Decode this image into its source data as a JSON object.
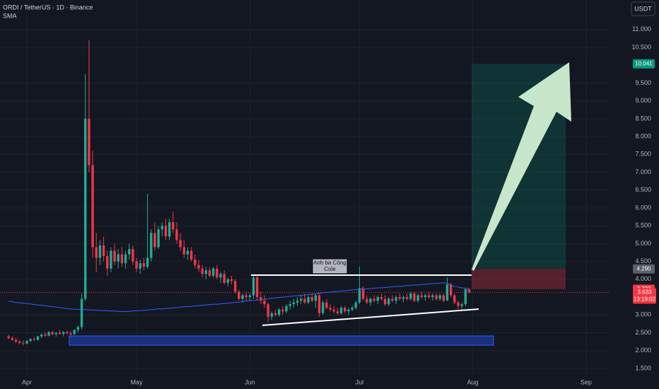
{
  "header": {
    "symbol": "ORDI / TetherUS · 1D · Binance",
    "currency": "USDT"
  },
  "chart_data": {
    "type": "candlestick",
    "up_color": "#22ab94",
    "down_color": "#f23645",
    "candles": [
      [
        2.4,
        2.45,
        2.32,
        2.35
      ],
      [
        2.35,
        2.4,
        2.28,
        2.3
      ],
      [
        2.3,
        2.36,
        2.22,
        2.25
      ],
      [
        2.25,
        2.3,
        2.18,
        2.22
      ],
      [
        2.22,
        2.28,
        2.15,
        2.2
      ],
      [
        2.2,
        2.3,
        2.17,
        2.27
      ],
      [
        2.27,
        2.35,
        2.24,
        2.32
      ],
      [
        2.32,
        2.38,
        2.26,
        2.3
      ],
      [
        2.3,
        2.42,
        2.28,
        2.4
      ],
      [
        2.4,
        2.48,
        2.35,
        2.45
      ],
      [
        2.45,
        2.52,
        2.38,
        2.42
      ],
      [
        2.42,
        2.55,
        2.4,
        2.52
      ],
      [
        2.52,
        2.56,
        2.42,
        2.46
      ],
      [
        2.46,
        2.52,
        2.4,
        2.5
      ],
      [
        2.5,
        2.58,
        2.44,
        2.47
      ],
      [
        2.47,
        2.55,
        2.4,
        2.52
      ],
      [
        2.52,
        2.56,
        2.45,
        2.49
      ],
      [
        2.49,
        2.55,
        2.42,
        2.46
      ],
      [
        2.46,
        2.6,
        2.44,
        2.58
      ],
      [
        2.58,
        2.7,
        2.5,
        2.66
      ],
      [
        2.66,
        3.6,
        2.6,
        3.45
      ],
      [
        3.45,
        9.75,
        3.4,
        8.5
      ],
      [
        8.5,
        10.7,
        7.0,
        7.2
      ],
      [
        7.2,
        7.6,
        4.6,
        4.9
      ],
      [
        4.9,
        5.3,
        4.2,
        4.6
      ],
      [
        4.6,
        5.1,
        4.4,
        4.95
      ],
      [
        4.95,
        5.2,
        4.5,
        4.65
      ],
      [
        4.65,
        4.8,
        4.1,
        4.3
      ],
      [
        4.3,
        4.9,
        4.2,
        4.8
      ],
      [
        4.8,
        5.0,
        4.4,
        4.5
      ],
      [
        4.5,
        4.85,
        4.3,
        4.7
      ],
      [
        4.7,
        4.9,
        4.35,
        4.45
      ],
      [
        4.45,
        4.8,
        4.3,
        4.7
      ],
      [
        4.7,
        5.0,
        4.55,
        4.85
      ],
      [
        4.85,
        4.95,
        4.4,
        4.5
      ],
      [
        4.5,
        4.6,
        4.2,
        4.3
      ],
      [
        4.3,
        4.55,
        4.15,
        4.45
      ],
      [
        4.45,
        4.6,
        4.25,
        4.35
      ],
      [
        4.35,
        6.4,
        4.3,
        4.6
      ],
      [
        4.6,
        5.4,
        4.5,
        5.3
      ],
      [
        5.3,
        5.6,
        4.8,
        4.9
      ],
      [
        4.9,
        5.5,
        4.85,
        5.4
      ],
      [
        5.4,
        5.6,
        5.2,
        5.5
      ],
      [
        5.5,
        5.7,
        5.1,
        5.2
      ],
      [
        5.2,
        5.7,
        5.1,
        5.6
      ],
      [
        5.6,
        5.9,
        5.3,
        5.4
      ],
      [
        5.4,
        5.6,
        5.0,
        5.1
      ],
      [
        5.1,
        5.3,
        4.8,
        4.9
      ],
      [
        4.9,
        5.1,
        4.6,
        4.7
      ],
      [
        4.7,
        4.9,
        4.55,
        4.8
      ],
      [
        4.8,
        4.9,
        4.5,
        4.55
      ],
      [
        4.55,
        4.7,
        4.3,
        4.4
      ],
      [
        4.4,
        4.55,
        4.2,
        4.3
      ],
      [
        4.3,
        4.4,
        4.05,
        4.15
      ],
      [
        4.15,
        4.35,
        4.0,
        4.25
      ],
      [
        4.25,
        4.35,
        4.05,
        4.1
      ],
      [
        4.1,
        4.35,
        4.05,
        4.3
      ],
      [
        4.3,
        4.4,
        4.0,
        4.05
      ],
      [
        4.05,
        4.2,
        3.9,
        4.15
      ],
      [
        4.15,
        4.25,
        3.85,
        3.9
      ],
      [
        3.9,
        4.05,
        3.8,
        4.0
      ],
      [
        4.0,
        4.1,
        3.85,
        3.95
      ],
      [
        3.95,
        4.0,
        3.6,
        3.65
      ],
      [
        3.65,
        3.7,
        3.4,
        3.45
      ],
      [
        3.45,
        3.6,
        3.35,
        3.55
      ],
      [
        3.55,
        3.65,
        3.4,
        3.5
      ],
      [
        3.5,
        3.6,
        3.4,
        3.55
      ],
      [
        3.55,
        4.1,
        3.45,
        4.05
      ],
      [
        4.05,
        4.12,
        3.4,
        3.5
      ],
      [
        3.5,
        3.65,
        3.3,
        3.4
      ],
      [
        3.4,
        3.55,
        3.2,
        3.3
      ],
      [
        3.3,
        3.35,
        2.8,
        2.95
      ],
      [
        2.95,
        3.1,
        2.85,
        3.05
      ],
      [
        3.05,
        3.15,
        2.95,
        3.0
      ],
      [
        3.0,
        3.2,
        2.95,
        3.15
      ],
      [
        3.15,
        3.25,
        3.0,
        3.1
      ],
      [
        3.1,
        3.3,
        3.05,
        3.25
      ],
      [
        3.25,
        3.4,
        3.15,
        3.3
      ],
      [
        3.3,
        3.45,
        3.2,
        3.35
      ],
      [
        3.35,
        3.5,
        3.25,
        3.4
      ],
      [
        3.4,
        3.55,
        3.3,
        3.45
      ],
      [
        3.45,
        3.6,
        3.3,
        3.35
      ],
      [
        3.35,
        3.55,
        3.3,
        3.5
      ],
      [
        3.5,
        3.6,
        3.35,
        3.4
      ],
      [
        3.4,
        3.6,
        3.2,
        3.55
      ],
      [
        3.55,
        3.6,
        2.95,
        3.05
      ],
      [
        3.05,
        3.4,
        3.0,
        3.35
      ],
      [
        3.35,
        3.45,
        3.15,
        3.2
      ],
      [
        3.2,
        3.3,
        3.1,
        3.15
      ],
      [
        3.15,
        3.25,
        3.05,
        3.1
      ],
      [
        3.1,
        3.2,
        3.0,
        3.05
      ],
      [
        3.05,
        3.25,
        3.0,
        3.2
      ],
      [
        3.2,
        3.25,
        3.05,
        3.1
      ],
      [
        3.1,
        3.2,
        3.0,
        3.15
      ],
      [
        3.15,
        3.25,
        3.1,
        3.2
      ],
      [
        3.2,
        3.4,
        3.15,
        3.35
      ],
      [
        3.35,
        4.35,
        3.3,
        3.75
      ],
      [
        3.75,
        3.8,
        3.4,
        3.45
      ],
      [
        3.45,
        3.55,
        3.3,
        3.35
      ],
      [
        3.35,
        3.5,
        3.25,
        3.45
      ],
      [
        3.45,
        3.55,
        3.35,
        3.4
      ],
      [
        3.4,
        3.55,
        3.3,
        3.5
      ],
      [
        3.5,
        3.6,
        3.4,
        3.45
      ],
      [
        3.45,
        3.55,
        3.25,
        3.3
      ],
      [
        3.3,
        3.5,
        3.25,
        3.45
      ],
      [
        3.45,
        3.55,
        3.35,
        3.4
      ],
      [
        3.4,
        3.55,
        3.3,
        3.5
      ],
      [
        3.5,
        3.6,
        3.4,
        3.45
      ],
      [
        3.45,
        3.55,
        3.35,
        3.5
      ],
      [
        3.5,
        3.6,
        3.4,
        3.45
      ],
      [
        3.45,
        3.65,
        3.4,
        3.6
      ],
      [
        3.6,
        3.65,
        3.35,
        3.4
      ],
      [
        3.4,
        3.6,
        3.35,
        3.55
      ],
      [
        3.55,
        3.65,
        3.45,
        3.5
      ],
      [
        3.5,
        3.6,
        3.4,
        3.55
      ],
      [
        3.55,
        3.65,
        3.45,
        3.5
      ],
      [
        3.5,
        3.6,
        3.4,
        3.55
      ],
      [
        3.55,
        3.6,
        3.4,
        3.45
      ],
      [
        3.45,
        3.6,
        3.4,
        3.55
      ],
      [
        3.55,
        3.6,
        3.35,
        3.4
      ],
      [
        3.4,
        4.05,
        3.4,
        3.85
      ],
      [
        3.85,
        3.9,
        3.5,
        3.55
      ],
      [
        3.55,
        3.6,
        3.3,
        3.35
      ],
      [
        3.35,
        3.4,
        3.15,
        3.25
      ],
      [
        3.25,
        3.35,
        3.15,
        3.3
      ],
      [
        3.3,
        3.75,
        3.25,
        3.72
      ],
      [
        3.72,
        3.75,
        3.6,
        3.633
      ]
    ],
    "indicator": {
      "name": "SMA",
      "color": "#2962ff",
      "values": [
        3.38,
        3.37,
        3.35,
        3.34,
        3.33,
        3.32,
        3.31,
        3.29,
        3.28,
        3.27,
        3.26,
        3.24,
        3.23,
        3.22,
        3.21,
        3.19,
        3.18,
        3.17,
        3.16,
        3.16,
        3.15,
        3.15,
        3.14,
        3.14,
        3.13,
        3.13,
        3.12,
        3.12,
        3.11,
        3.11,
        3.1,
        3.1,
        3.09,
        3.1,
        3.11,
        3.12,
        3.12,
        3.13,
        3.14,
        3.15,
        3.16,
        3.17,
        3.17,
        3.18,
        3.19,
        3.2,
        3.21,
        3.22,
        3.23,
        3.23,
        3.24,
        3.25,
        3.26,
        3.27,
        3.28,
        3.29,
        3.3,
        3.3,
        3.31,
        3.32,
        3.33,
        3.34,
        3.35,
        3.36,
        3.37,
        3.39,
        3.4,
        3.41,
        3.42,
        3.43,
        3.44,
        3.45,
        3.47,
        3.48,
        3.49,
        3.5,
        3.51,
        3.52,
        3.53,
        3.54,
        3.55,
        3.56,
        3.57,
        3.58,
        3.59,
        3.61,
        3.62,
        3.63,
        3.64,
        3.65,
        3.66,
        3.67,
        3.68,
        3.69,
        3.7,
        3.71,
        3.72,
        3.72,
        3.73,
        3.74,
        3.75,
        3.76,
        3.76,
        3.77,
        3.78,
        3.79,
        3.8,
        3.8,
        3.81,
        3.82,
        3.83,
        3.84,
        3.84,
        3.85,
        3.86,
        3.87,
        3.88,
        3.88,
        3.89,
        3.9,
        3.88,
        3.84,
        3.8,
        3.78,
        3.76,
        3.75,
        3.74
      ]
    },
    "xlim": [
      -2.35,
      164.4
    ],
    "xticks": [
      {
        "value": 5,
        "label": "Apr"
      },
      {
        "value": 35,
        "label": "May"
      },
      {
        "value": 66,
        "label": "Jun"
      },
      {
        "value": 96,
        "label": "Jul"
      },
      {
        "value": 127,
        "label": "Aug"
      },
      {
        "value": 158,
        "label": "Sep"
      }
    ],
    "ylim": [
      1.32,
      11.83
    ],
    "yticks": [
      {
        "value": 11,
        "label": "11.000"
      },
      {
        "value": 10.5,
        "label": "10.500"
      },
      {
        "value": 9.5,
        "label": "9.500"
      },
      {
        "value": 9,
        "label": "9.000"
      },
      {
        "value": 8.5,
        "label": "8.500"
      },
      {
        "value": 8,
        "label": "8.000"
      },
      {
        "value": 7.5,
        "label": "7.500"
      },
      {
        "value": 7,
        "label": "7.000"
      },
      {
        "value": 6.5,
        "label": "6.500"
      },
      {
        "value": 6,
        "label": "6.000"
      },
      {
        "value": 5.5,
        "label": "5.500"
      },
      {
        "value": 5,
        "label": "5.000"
      },
      {
        "value": 4.5,
        "label": "4.500"
      },
      {
        "value": 4,
        "label": "4.000"
      },
      {
        "value": 3,
        "label": "3.000"
      },
      {
        "value": 2.5,
        "label": "2.500"
      },
      {
        "value": 2,
        "label": "2.000"
      },
      {
        "value": 1.5,
        "label": "1.500"
      }
    ],
    "position": {
      "target": 10.041,
      "entry": {
        "value": 4.29,
        "label": "4.290"
      },
      "stop": 3.722
    },
    "last_price": {
      "value": 3.633,
      "countdown": "13:19:02"
    },
    "annotation": [
      "Anh ba Công",
      "Cole"
    ]
  }
}
